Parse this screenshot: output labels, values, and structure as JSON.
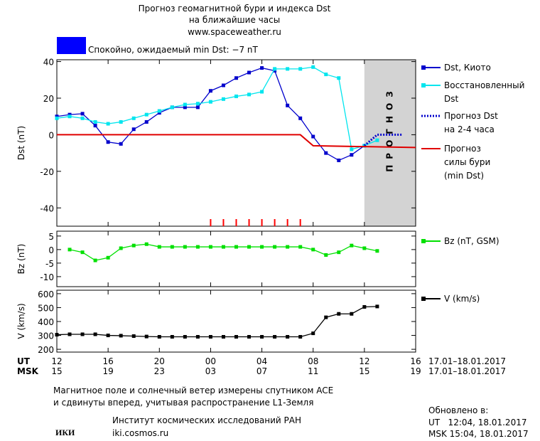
{
  "header": {
    "title": "Прогноз геомагнитной бури и индекса Dst",
    "subtitle": "на ближайшие часы",
    "url": "www.spaceweather.ru"
  },
  "status": {
    "text": "Спокойно, ожидаемый min Dst: −7 nT",
    "color": "#0000ff"
  },
  "chart_data": [
    {
      "type": "line",
      "ylabel": "Dst (nT)",
      "xlim": [
        0,
        28
      ],
      "ylim": [
        -50,
        41
      ],
      "yticks": [
        40,
        20,
        0,
        -20,
        -40
      ],
      "forecast_region": [
        24,
        28
      ],
      "forecast_label": "ПРОГНОЗ",
      "forecast_color": "#d3d3d3",
      "event_marks": {
        "color": "#ff0000",
        "x": [
          12,
          13,
          14,
          15,
          16,
          17,
          18,
          19
        ]
      },
      "series": [
        {
          "name": "Dst, Киото",
          "color": "#0000cc",
          "marker": "square",
          "dash": "solid",
          "x": [
            0,
            1,
            2,
            3,
            4,
            5,
            6,
            7,
            8,
            9,
            10,
            11,
            12,
            13,
            14,
            15,
            16,
            17,
            18,
            19,
            20,
            21,
            22,
            23,
            24
          ],
          "values": [
            10,
            11,
            11.5,
            5,
            -4,
            -5,
            3,
            7,
            12,
            15,
            15,
            15,
            24,
            27,
            31,
            34,
            36.5,
            35,
            16,
            9,
            -1,
            -10,
            -14,
            -11,
            -6
          ]
        },
        {
          "name": "Восстановленный\nDst",
          "color": "#00e5ee",
          "marker": "square",
          "dash": "solid",
          "x": [
            0,
            1,
            2,
            3,
            4,
            5,
            6,
            7,
            8,
            9,
            10,
            11,
            12,
            13,
            14,
            15,
            16,
            17,
            18,
            19,
            20,
            21,
            22,
            23,
            24,
            25
          ],
          "values": [
            9,
            10,
            9,
            7,
            6,
            7,
            9,
            11,
            13,
            15,
            16.5,
            17,
            18,
            19.5,
            21,
            22,
            23.5,
            36,
            36,
            36,
            37,
            33,
            31,
            -8,
            -6,
            -3
          ]
        },
        {
          "name": "Прогноз Dst\nна 2-4 часа",
          "color": "#0000cc",
          "marker": "none",
          "dash": "dotted",
          "x": [
            24,
            25,
            27
          ],
          "values": [
            -6,
            0,
            0
          ]
        },
        {
          "name": "Прогноз\nсилы бури\n(min Dst)",
          "color": "#e00000",
          "marker": "none",
          "dash": "solid",
          "x": [
            0,
            19,
            20,
            28
          ],
          "values": [
            0,
            0,
            -6,
            -7
          ]
        }
      ]
    },
    {
      "type": "line",
      "ylabel": "Bz (nT)",
      "xlim": [
        0,
        28
      ],
      "ylim": [
        -13.7,
        6.8
      ],
      "yticks": [
        5,
        0,
        -5,
        -10
      ],
      "series": [
        {
          "name": "Bz (nT, GSM)",
          "color": "#00e000",
          "marker": "square",
          "dash": "solid",
          "x": [
            1,
            2,
            3,
            4,
            5,
            6,
            7,
            8,
            9,
            10,
            11,
            12,
            13,
            14,
            15,
            16,
            17,
            18,
            19,
            20,
            21,
            22,
            23,
            24,
            25
          ],
          "values": [
            0,
            -1,
            -4,
            -3,
            0.5,
            1.5,
            2,
            1,
            1,
            1,
            1,
            1,
            1,
            1,
            1,
            1,
            1,
            1,
            1,
            0,
            -2,
            -1,
            1.5,
            0.5,
            -0.5
          ]
        }
      ]
    },
    {
      "type": "line",
      "ylabel": "V (km/s)",
      "xlim": [
        0,
        28
      ],
      "ylim": [
        180,
        625
      ],
      "yticks": [
        600,
        500,
        400,
        300,
        200
      ],
      "xticks": [
        {
          "value": 0,
          "label": "12"
        },
        {
          "value": 4,
          "label": "16"
        },
        {
          "value": 8,
          "label": "20"
        },
        {
          "value": 12,
          "label": "00"
        },
        {
          "value": 16,
          "label": "04"
        },
        {
          "value": 20,
          "label": "08"
        },
        {
          "value": 24,
          "label": "12"
        },
        {
          "value": 28,
          "label": "16"
        }
      ],
      "x2ticks": [
        {
          "value": 0,
          "label": "15"
        },
        {
          "value": 4,
          "label": "19"
        },
        {
          "value": 8,
          "label": "23"
        },
        {
          "value": 12,
          "label": "03"
        },
        {
          "value": 16,
          "label": "07"
        },
        {
          "value": 20,
          "label": "11"
        },
        {
          "value": 24,
          "label": "15"
        },
        {
          "value": 28,
          "label": "19"
        }
      ],
      "x_row_labels": [
        "UT",
        "MSK"
      ],
      "date_range": "17.01–18.01.2017",
      "series": [
        {
          "name": "V (km/s)",
          "color": "#000000",
          "marker": "square",
          "dash": "solid",
          "x": [
            0,
            1,
            2,
            3,
            4,
            5,
            6,
            7,
            8,
            9,
            10,
            11,
            12,
            13,
            14,
            15,
            16,
            17,
            18,
            19,
            20,
            21,
            22,
            23,
            24,
            25
          ],
          "values": [
            305,
            308,
            308,
            308,
            300,
            298,
            295,
            292,
            290,
            290,
            290,
            290,
            290,
            290,
            290,
            290,
            290,
            290,
            290,
            290,
            315,
            430,
            455,
            455,
            505,
            508
          ]
        }
      ]
    }
  ],
  "footer": {
    "note_line1": "Магнитное поле и солнечный ветер измерены спутником ACE",
    "note_line2": "и сдвинуты вперед, учитывая распространение L1-Земля",
    "logo": "ИКИ",
    "institute": "Институт космических исследований РАН",
    "site": "iki.cosmos.ru",
    "updated": "Обновлено в:",
    "updated_ut": "UT   12:04, 18.01.2017",
    "updated_msk": "MSK 15:04, 18.01.2017"
  }
}
